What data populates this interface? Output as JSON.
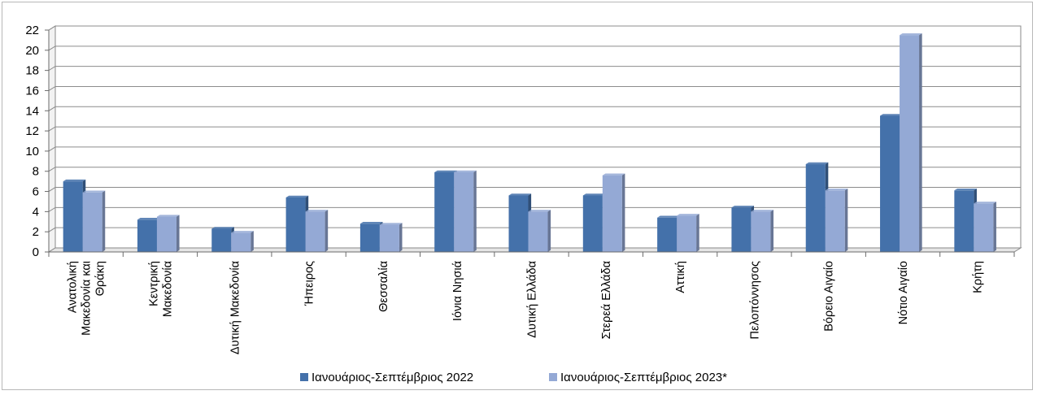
{
  "chart_data": {
    "type": "bar",
    "title": "",
    "xlabel": "",
    "ylabel": "",
    "ylim": [
      0,
      22
    ],
    "yticks": [
      0,
      2,
      4,
      6,
      8,
      10,
      12,
      14,
      16,
      18,
      20,
      22
    ],
    "grid": true,
    "legend_position": "bottom",
    "categories": [
      [
        "Ανατολική",
        "Μακεδονία και",
        "Θράκη"
      ],
      [
        "Κεντρική",
        "Μακεδονία"
      ],
      [
        "Δυτική Μακεδονία"
      ],
      [
        "Ήπειρος"
      ],
      [
        "Θεσσαλία"
      ],
      [
        "Ιόνια Νησιά"
      ],
      [
        "Δυτική Ελλάδα"
      ],
      [
        "Στερεά Ελλάδα"
      ],
      [
        "Αττική"
      ],
      [
        "Πελοπόννησος"
      ],
      [
        "Βόρειο Αιγαίο"
      ],
      [
        "Νότιο Αιγαίο"
      ],
      [
        "Κρήτη"
      ]
    ],
    "series": [
      {
        "name": "Ιανουάριος-Σεπτέμβριος 2022",
        "color": "#4471aa",
        "values": [
          7.0,
          3.2,
          2.3,
          5.4,
          2.8,
          7.9,
          5.6,
          5.6,
          3.4,
          4.4,
          8.7,
          13.5,
          6.1
        ]
      },
      {
        "name": "Ιανουάριος-Σεπτέμβριος 2023*",
        "color": "#94a9d5",
        "values": [
          5.9,
          3.5,
          1.9,
          4.0,
          2.7,
          7.9,
          4.0,
          7.6,
          3.6,
          4.0,
          6.1,
          21.5,
          4.8
        ]
      }
    ]
  }
}
